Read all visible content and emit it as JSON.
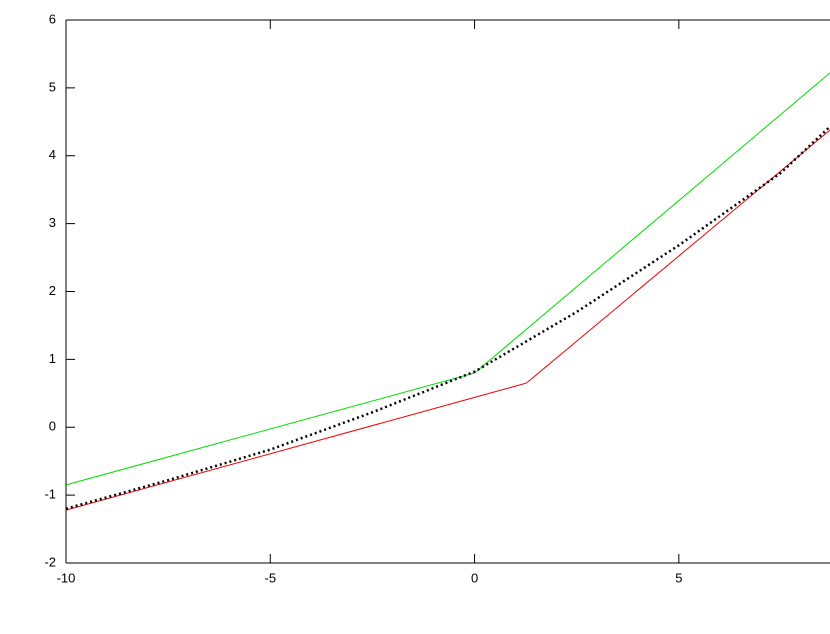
{
  "chart_data": {
    "type": "line",
    "xlim": [
      -10,
      8.7
    ],
    "ylim": [
      -2,
      6
    ],
    "xticks": [
      -10,
      -5,
      0,
      5
    ],
    "yticks": [
      -2,
      -1,
      0,
      1,
      2,
      3,
      4,
      5,
      6
    ],
    "series": [
      {
        "color": "#00dd00",
        "style": "solid",
        "x": [
          -10,
          0,
          8.7
        ],
        "values": [
          -0.85,
          0.8,
          5.22
        ]
      },
      {
        "color": "#ee0000",
        "style": "solid",
        "x": [
          -10,
          0,
          1.27,
          8.7
        ],
        "values": [
          -1.22,
          0.44,
          0.65,
          4.38
        ]
      },
      {
        "color": "#000000",
        "style": "dotted",
        "x": [
          -10,
          -7.5,
          -5,
          -2.5,
          0,
          2.5,
          5,
          7.5,
          8.7
        ],
        "values": [
          -1.2,
          -0.78,
          -0.33,
          0.22,
          0.82,
          1.7,
          2.68,
          3.75,
          4.43
        ]
      }
    ]
  }
}
